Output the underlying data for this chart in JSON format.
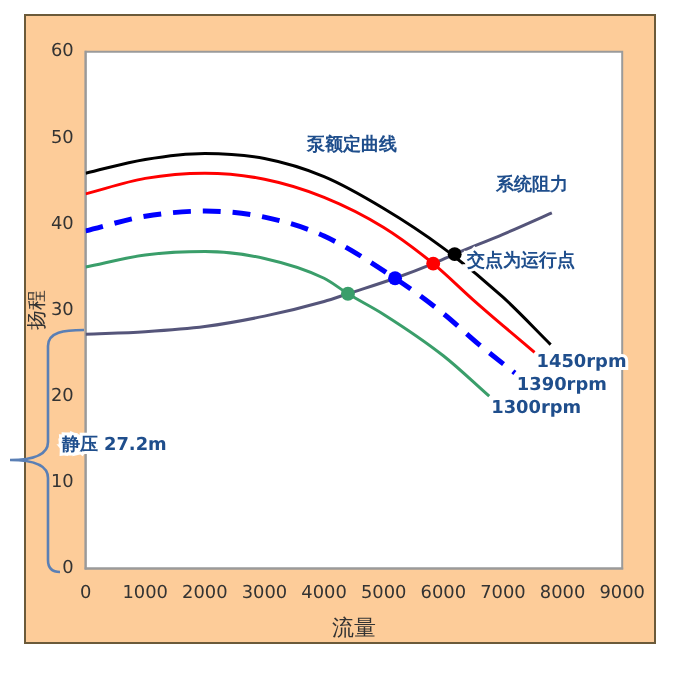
{
  "chart_data": {
    "type": "line",
    "xlabel": "流量",
    "ylabel": "扬程",
    "xlim": [
      0,
      9000
    ],
    "xticks": [
      0,
      1000,
      2000,
      3000,
      4000,
      5000,
      6000,
      7000,
      8000,
      9000
    ],
    "ylim": [
      0,
      60
    ],
    "yticks": [
      0,
      10,
      20,
      30,
      40,
      50,
      60
    ],
    "grid": false,
    "legend": false,
    "marker": "none",
    "line_style": "solid",
    "series": [
      {
        "name": "泵额定曲线",
        "color": "#000000",
        "x": [
          0,
          1000,
          2000,
          3000,
          4000,
          5000,
          6000,
          7000,
          7800
        ],
        "values": [
          45.9,
          47.5,
          48.2,
          47.6,
          45.5,
          41.8,
          37.2,
          31.5,
          26
        ]
      },
      {
        "name": "1450rpm",
        "color": "#ff0000",
        "x": [
          0,
          1000,
          2000,
          3000,
          4000,
          5000,
          5830,
          6500,
          7000,
          7530
        ],
        "values": [
          43.5,
          45.3,
          45.9,
          45.2,
          43.1,
          39.6,
          35.4,
          31.2,
          28.2,
          25.1
        ]
      },
      {
        "name": "1390rpm",
        "color": "#0000ff",
        "line_style": "dashed",
        "x": [
          0,
          1000,
          2000,
          3000,
          4000,
          5190,
          6000,
          6600,
          7200
        ],
        "values": [
          39.2,
          40.9,
          41.5,
          40.8,
          38.6,
          33.7,
          29.6,
          26,
          22.7
        ]
      },
      {
        "name": "1300rpm",
        "color": "#3a9e6a",
        "x": [
          0,
          1000,
          2000,
          3000,
          4000,
          4400,
          5000,
          6000,
          6770
        ],
        "values": [
          35,
          36.4,
          36.8,
          36,
          33.7,
          31.9,
          29.5,
          24.7,
          20
        ]
      },
      {
        "name": "系统阻力",
        "color": "#55557a",
        "x": [
          0,
          1000,
          2000,
          3000,
          4000,
          4400,
          5190,
          5830,
          6190,
          7000,
          7820
        ],
        "values": [
          27.2,
          27.5,
          28.1,
          29.3,
          31,
          31.9,
          33.7,
          35.4,
          36.5,
          38.8,
          41.3
        ]
      },
      {
        "type": "scatter",
        "marker": "circle",
        "x": [
          4400,
          5190,
          5830,
          6190
        ],
        "values": [
          31.9,
          33.7,
          35.4,
          36.5
        ],
        "colors": [
          "#3a9e6a",
          "#0000ff",
          "#ff0000",
          "#000000"
        ]
      }
    ],
    "annotations": [
      {
        "text": "交点为运行点",
        "x": 5830,
        "y": 35.4
      },
      "静压 27.2m"
    ]
  }
}
